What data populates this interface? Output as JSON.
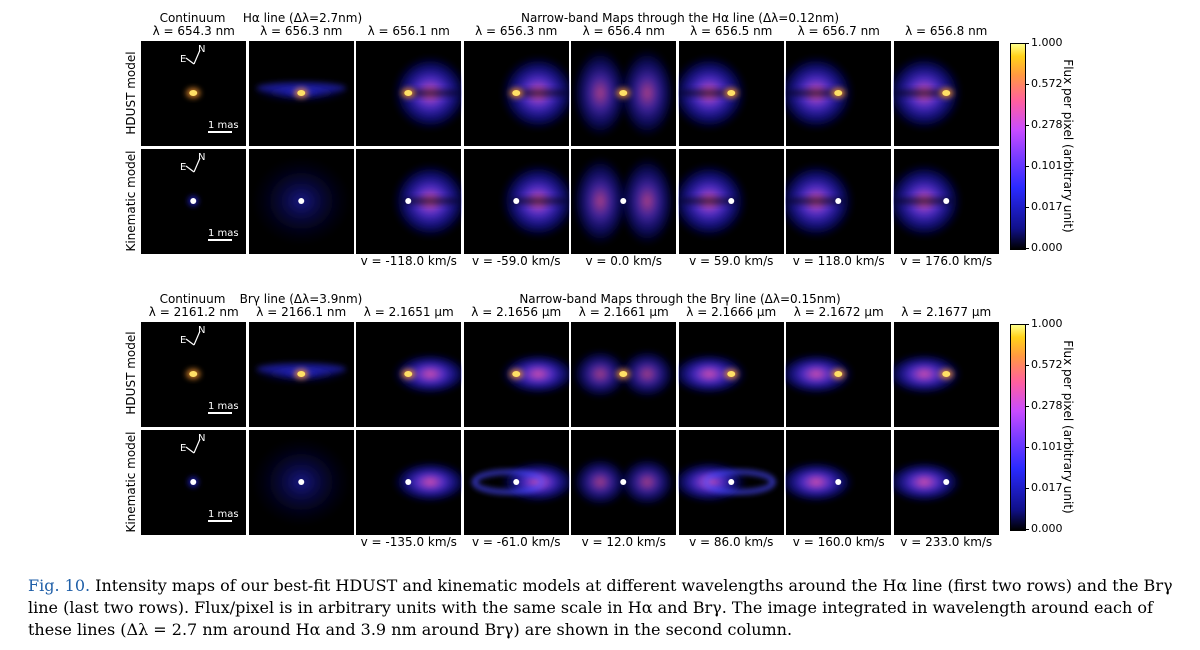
{
  "block1": {
    "col_headers_top": [
      "Continuum",
      "Hα line (Δλ=2.7nm)",
      "Narrow-band Maps through the Hα line (Δλ=0.12nm)"
    ],
    "wavelengths": [
      "λ = 654.3 nm",
      "λ = 656.3 nm",
      "λ = 656.1 nm",
      "λ = 656.3 nm",
      "λ = 656.4 nm",
      "λ = 656.5 nm",
      "λ = 656.7 nm",
      "λ = 656.8 nm"
    ],
    "row_labels": [
      "HDUST model",
      "Kinematic model"
    ],
    "velocities": [
      "v = -118.0 km/s",
      "v = -59.0 km/s",
      "v = 0.0 km/s",
      "v = 59.0 km/s",
      "v = 118.0 km/s",
      "v = 176.0 km/s"
    ]
  },
  "block2": {
    "col_headers_top": [
      "Continuum",
      "Brγ line (Δλ=3.9nm)",
      "Narrow-band Maps through the Brγ line (Δλ=0.15nm)"
    ],
    "wavelengths": [
      "λ = 2161.2 nm",
      "λ = 2166.1 nm",
      "λ = 2.1651 μm",
      "λ = 2.1656 μm",
      "λ = 2.1661 μm",
      "λ = 2.1666 μm",
      "λ = 2.1672 μm",
      "λ = 2.1677 μm"
    ],
    "row_labels": [
      "HDUST model",
      "Kinematic model"
    ],
    "velocities": [
      "v = -135.0 km/s",
      "v = -61.0 km/s",
      "v = 12.0 km/s",
      "v = 86.0 km/s",
      "v = 160.0 km/s",
      "v = 233.0 km/s"
    ]
  },
  "colorbar": {
    "ticks": [
      "1.000",
      "0.572",
      "0.278",
      "0.101",
      "0.017",
      "0.000"
    ],
    "title": "Flux per pixel (arbitrary unit)"
  },
  "annotations": {
    "scale": "1 mas",
    "north": "N",
    "east": "E"
  },
  "caption": {
    "fig_label": "Fig. 10.",
    "text": "Intensity maps of our best-fit HDUST and kinematic models at different wavelengths around the Hα line (first two rows) and the Brγ line (last two rows). Flux/pixel is in arbitrary units with the same scale in Hα and Brγ. The image integrated in wavelength around each of these lines (Δλ = 2.7 nm around Hα and 3.9 nm around Brγ) are shown in the second column."
  },
  "colors": {
    "panel_bg": "#000000",
    "star_hot": "#ffe066",
    "star_white": "#ffffff",
    "emission": "#3a3aff",
    "emission_inner": "#ff4fc0",
    "fig_label": "#1f5fa8"
  }
}
